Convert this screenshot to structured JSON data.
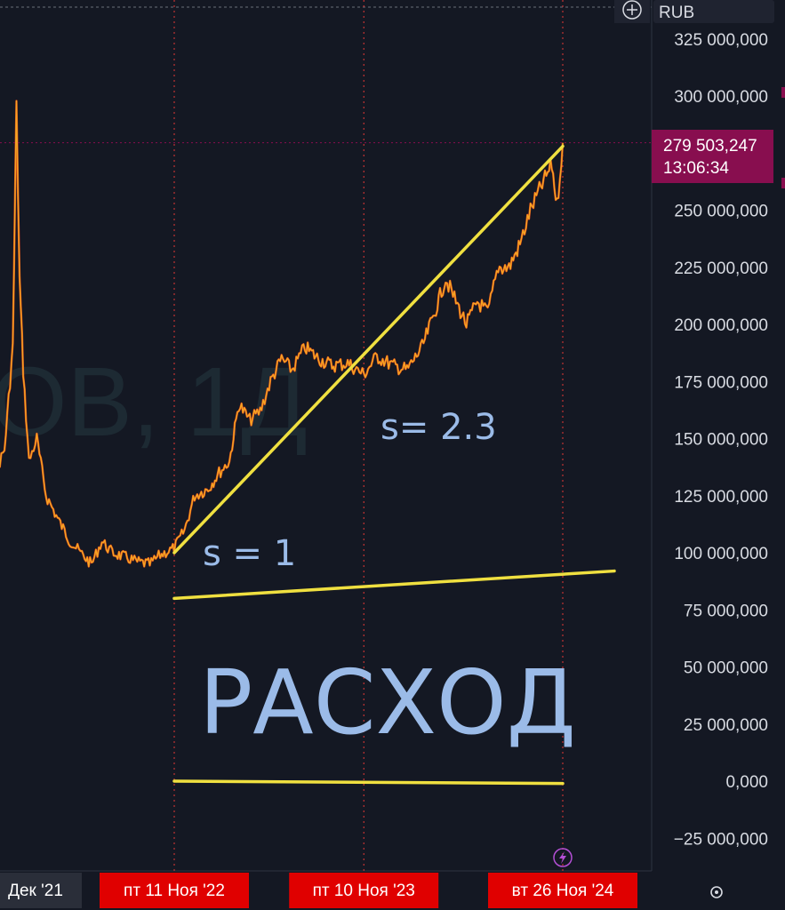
{
  "currency_label": "RUB",
  "watermark": "ОВ, 1Д",
  "current_price": {
    "value": "279 503,247",
    "countdown": "13:06:34",
    "color": "#880e4f"
  },
  "colors": {
    "background": "#141823",
    "price_line": "#f5a623",
    "trend": "#f0e040",
    "divider": "#e53935",
    "date_badge": "#e00000",
    "handwriting": "#9bbbe8"
  },
  "annotations": {
    "s_one": "s = 1",
    "s_two": "s= 2.3",
    "word": "РАСХОД"
  },
  "chart_data": {
    "type": "line",
    "ylim": [
      -30000000,
      330000000
    ],
    "y_ticks": [
      325000000,
      300000000,
      250000000,
      225000000,
      200000000,
      175000000,
      150000000,
      125000000,
      100000000,
      75000000,
      50000000,
      25000000,
      0,
      -25000000
    ],
    "y_tick_labels": [
      "325 000,000",
      "300 000,000",
      "250 000,000",
      "225 000,000",
      "200 000,000",
      "175 000,000",
      "150 000,000",
      "125 000,000",
      "100 000,000",
      "75 000,000",
      "50 000,000",
      "25 000,000",
      "0,000",
      "−25 000,000"
    ],
    "x_labels": [
      "Дек '21",
      "пт 11 Ноя '22",
      "пт 10 Ноя '23",
      "вт 26 Ноя '24"
    ],
    "x_dates": [
      "2021-12-01",
      "2022-11-11",
      "2023-11-10",
      "2024-11-26"
    ],
    "series": [
      {
        "values": [
          [
            "2021-10-01",
            130000000
          ],
          [
            "2021-10-20",
            135000000
          ],
          [
            "2021-11-10",
            138000000
          ],
          [
            "2021-11-25",
            140000000
          ],
          [
            "2021-12-05",
            137000000
          ],
          [
            "2021-12-20",
            145000000
          ],
          [
            "2022-01-05",
            190000000
          ],
          [
            "2022-01-12",
            295000000
          ],
          [
            "2022-01-18",
            220000000
          ],
          [
            "2022-01-25",
            180000000
          ],
          [
            "2022-02-05",
            140000000
          ],
          [
            "2022-02-20",
            150000000
          ],
          [
            "2022-03-10",
            125000000
          ],
          [
            "2022-04-01",
            115000000
          ],
          [
            "2022-04-25",
            105000000
          ],
          [
            "2022-05-15",
            100000000
          ],
          [
            "2022-06-05",
            95000000
          ],
          [
            "2022-06-25",
            105000000
          ],
          [
            "2022-07-15",
            100000000
          ],
          [
            "2022-08-10",
            98000000
          ],
          [
            "2022-09-01",
            96000000
          ],
          [
            "2022-09-25",
            95000000
          ],
          [
            "2022-10-15",
            99000000
          ],
          [
            "2022-11-11",
            102000000
          ],
          [
            "2022-12-01",
            110000000
          ],
          [
            "2022-12-20",
            125000000
          ],
          [
            "2023-01-15",
            128000000
          ],
          [
            "2023-02-05",
            135000000
          ],
          [
            "2023-02-25",
            140000000
          ],
          [
            "2023-03-15",
            165000000
          ],
          [
            "2023-04-05",
            158000000
          ],
          [
            "2023-04-25",
            162000000
          ],
          [
            "2023-05-15",
            175000000
          ],
          [
            "2023-06-05",
            185000000
          ],
          [
            "2023-06-25",
            180000000
          ],
          [
            "2023-07-20",
            190000000
          ],
          [
            "2023-08-15",
            185000000
          ],
          [
            "2023-09-10",
            182000000
          ],
          [
            "2023-10-10",
            183000000
          ],
          [
            "2023-11-10",
            178000000
          ],
          [
            "2023-12-05",
            186000000
          ],
          [
            "2024-01-05",
            182000000
          ],
          [
            "2024-02-01",
            180000000
          ],
          [
            "2024-03-01",
            190000000
          ],
          [
            "2024-03-25",
            205000000
          ],
          [
            "2024-04-15",
            220000000
          ],
          [
            "2024-05-05",
            210000000
          ],
          [
            "2024-05-25",
            200000000
          ],
          [
            "2024-06-15",
            210000000
          ],
          [
            "2024-07-05",
            205000000
          ],
          [
            "2024-07-25",
            225000000
          ],
          [
            "2024-08-15",
            225000000
          ],
          [
            "2024-09-05",
            235000000
          ],
          [
            "2024-09-25",
            250000000
          ],
          [
            "2024-10-15",
            260000000
          ],
          [
            "2024-11-05",
            270000000
          ],
          [
            "2024-11-15",
            252000000
          ],
          [
            "2024-11-26",
            279503247
          ]
        ]
      }
    ],
    "trend_lines": [
      {
        "from": [
          "2022-11-11",
          100000000
        ],
        "to": [
          "2024-11-26",
          278000000
        ]
      },
      {
        "from": [
          "2022-11-11",
          80000000
        ],
        "to": [
          "2025-03-05",
          92000000
        ]
      },
      {
        "from": [
          "2022-11-11",
          0
        ],
        "to": [
          "2024-11-26",
          -1000000
        ]
      }
    ]
  }
}
